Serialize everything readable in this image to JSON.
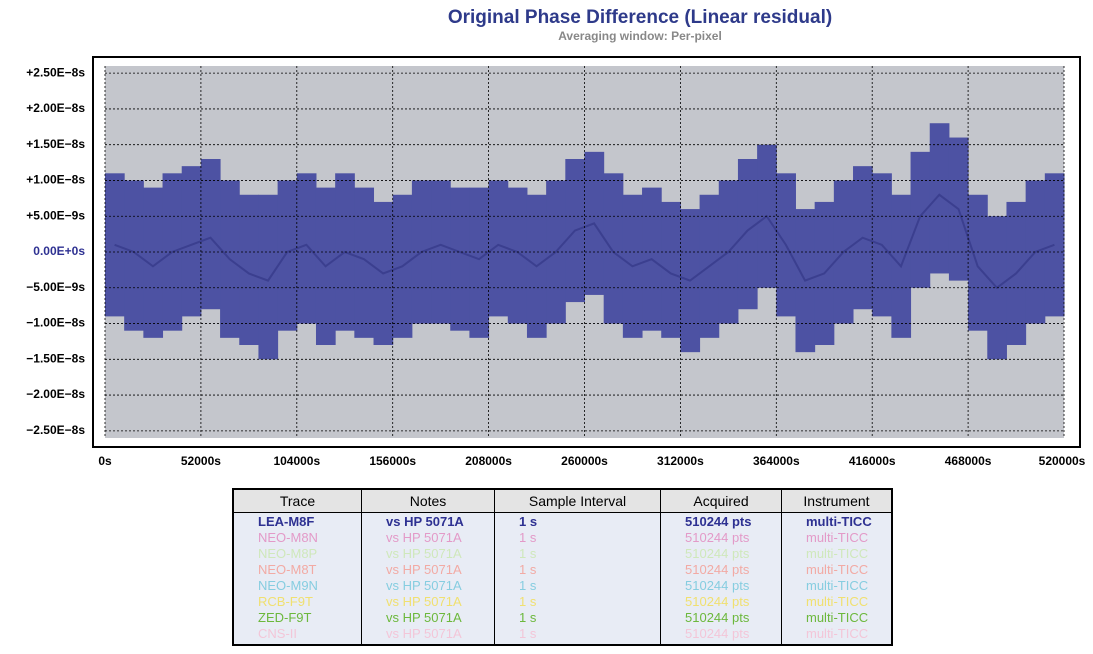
{
  "chart_data": {
    "type": "line",
    "title": "Original Phase Difference (Linear residual)",
    "subtitle": "Averaging window: Per-pixel",
    "xlim": [
      0,
      520000
    ],
    "ylim": [
      -2.6e-08,
      2.6e-08
    ],
    "xticks": [
      {
        "value": 0,
        "label": "0s"
      },
      {
        "value": 52000,
        "label": "52000s"
      },
      {
        "value": 104000,
        "label": "104000s"
      },
      {
        "value": 156000,
        "label": "156000s"
      },
      {
        "value": 208000,
        "label": "208000s"
      },
      {
        "value": 260000,
        "label": "260000s"
      },
      {
        "value": 312000,
        "label": "312000s"
      },
      {
        "value": 364000,
        "label": "364000s"
      },
      {
        "value": 416000,
        "label": "416000s"
      },
      {
        "value": 468000,
        "label": "468000s"
      },
      {
        "value": 520000,
        "label": "520000s"
      }
    ],
    "yticks": [
      {
        "value": 2.5e-08,
        "label": "+2.50E−8s"
      },
      {
        "value": 2e-08,
        "label": "+2.00E−8s"
      },
      {
        "value": 1.5e-08,
        "label": "+1.50E−8s"
      },
      {
        "value": 1e-08,
        "label": "+1.00E−8s"
      },
      {
        "value": 5e-09,
        "label": "+5.00E−9s"
      },
      {
        "value": 0,
        "label": "0.00E+0s"
      },
      {
        "value": -5e-09,
        "label": "−5.00E−9s"
      },
      {
        "value": -1e-08,
        "label": "−1.00E−8s"
      },
      {
        "value": -1.5e-08,
        "label": "−1.50E−8s"
      },
      {
        "value": -2e-08,
        "label": "−2.00E−8s"
      },
      {
        "value": -2.5e-08,
        "label": "−2.50E−8s"
      }
    ],
    "zero_tick_color": "#2e3192",
    "grid": true,
    "x": [
      0,
      10400,
      20800,
      31200,
      41600,
      52000,
      62400,
      72800,
      83200,
      93600,
      104000,
      114400,
      124800,
      135200,
      145600,
      156000,
      166400,
      176800,
      187200,
      197600,
      208000,
      218400,
      228800,
      239200,
      249600,
      260000,
      270400,
      280800,
      291200,
      301600,
      312000,
      322400,
      332800,
      343200,
      353600,
      364000,
      374400,
      384800,
      395200,
      405600,
      416000,
      426400,
      436800,
      447200,
      457600,
      468000,
      478400,
      488800,
      499200,
      509600
    ],
    "series": [
      {
        "name": "LEA-M8F",
        "color": "#3b3f8f",
        "band_color": "#4d52a3",
        "values": [
          1e-09,
          0,
          -2e-09,
          0,
          1e-09,
          2e-09,
          -1e-09,
          -3e-09,
          -4e-09,
          0,
          1e-09,
          -2e-09,
          0,
          -1e-09,
          -3e-09,
          -2e-09,
          0,
          1e-09,
          0,
          -1e-09,
          1e-09,
          0,
          -2e-09,
          0,
          3e-09,
          4e-09,
          0,
          -2e-09,
          -1e-09,
          -3e-09,
          -4e-09,
          -2e-09,
          0,
          3e-09,
          5e-09,
          1e-09,
          -4e-09,
          -3e-09,
          0,
          2e-09,
          1e-09,
          -2e-09,
          5e-09,
          8e-09,
          6e-09,
          -2e-09,
          -5e-09,
          -3e-09,
          0,
          1e-09
        ],
        "upper": [
          1.1e-08,
          1e-08,
          9e-09,
          1.1e-08,
          1.2e-08,
          1.3e-08,
          1e-08,
          8e-09,
          8e-09,
          1e-08,
          1.1e-08,
          9e-09,
          1.1e-08,
          9e-09,
          7e-09,
          8e-09,
          1e-08,
          1e-08,
          9e-09,
          9e-09,
          1e-08,
          9e-09,
          8e-09,
          1e-08,
          1.3e-08,
          1.4e-08,
          1.1e-08,
          8e-09,
          9e-09,
          7e-09,
          6e-09,
          8e-09,
          1e-08,
          1.3e-08,
          1.5e-08,
          1.1e-08,
          6e-09,
          7e-09,
          1e-08,
          1.2e-08,
          1.1e-08,
          8e-09,
          1.4e-08,
          1.8e-08,
          1.6e-08,
          8e-09,
          5e-09,
          7e-09,
          1e-08,
          1.1e-08
        ],
        "lower": [
          -9e-09,
          -1.1e-08,
          -1.2e-08,
          -1.1e-08,
          -9e-09,
          -8e-09,
          -1.2e-08,
          -1.3e-08,
          -1.5e-08,
          -1.1e-08,
          -1e-08,
          -1.3e-08,
          -1.1e-08,
          -1.2e-08,
          -1.3e-08,
          -1.2e-08,
          -1e-08,
          -1e-08,
          -1.1e-08,
          -1.2e-08,
          -9e-09,
          -1e-08,
          -1.2e-08,
          -1e-08,
          -7e-09,
          -6e-09,
          -1e-08,
          -1.2e-08,
          -1.1e-08,
          -1.2e-08,
          -1.4e-08,
          -1.2e-08,
          -1e-08,
          -8e-09,
          -5e-09,
          -9e-09,
          -1.4e-08,
          -1.3e-08,
          -1e-08,
          -8e-09,
          -9e-09,
          -1.2e-08,
          -5e-09,
          -3e-09,
          -4e-09,
          -1.1e-08,
          -1.5e-08,
          -1.3e-08,
          -1e-08,
          -9e-09
        ]
      }
    ],
    "legend_table": {
      "columns": [
        "Trace",
        "Notes",
        "Sample Interval",
        "Acquired",
        "Instrument"
      ],
      "rows": [
        [
          "LEA-M8F",
          "vs HP 5071A",
          "1 s",
          "510244 pts",
          "multi-TICC"
        ],
        [
          "NEO-M8N",
          "vs HP 5071A",
          "1 s",
          "510244 pts",
          "multi-TICC"
        ],
        [
          "NEO-M8P",
          "vs HP 5071A",
          "1 s",
          "510244 pts",
          "multi-TICC"
        ],
        [
          "NEO-M8T",
          "vs HP 5071A",
          "1 s",
          "510244 pts",
          "multi-TICC"
        ],
        [
          "NEO-M9N",
          "vs HP 5071A",
          "1 s",
          "510244 pts",
          "multi-TICC"
        ],
        [
          "RCB-F9T",
          "vs HP 5071A",
          "1 s",
          "510244 pts",
          "multi-TICC"
        ],
        [
          "ZED-F9T",
          "vs HP 5071A",
          "1 s",
          "510244 pts",
          "multi-TICC"
        ],
        [
          "CNS-II",
          "vs HP 5071A",
          "1 s",
          "510244 pts",
          "multi-TICC"
        ]
      ],
      "row_colors": [
        "#2e3192",
        "#e39ac8",
        "#cfe8bb",
        "#f2aaa4",
        "#86cde0",
        "#f0e070",
        "#6cb83c",
        "#f3c6d8"
      ]
    }
  }
}
